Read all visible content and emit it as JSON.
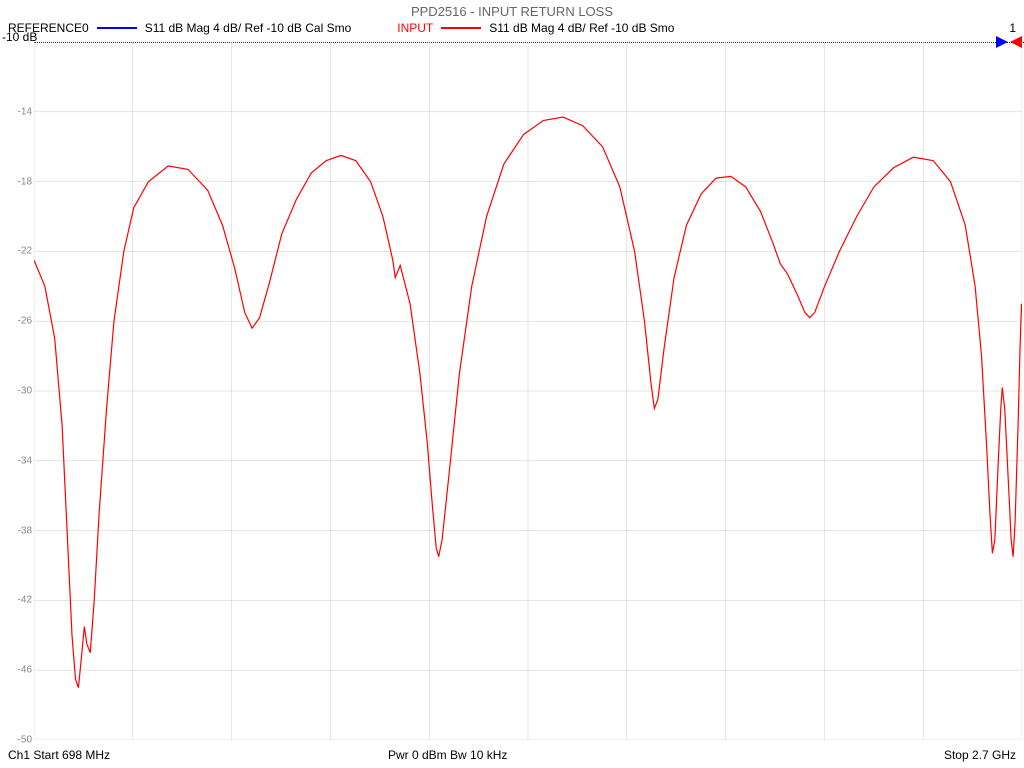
{
  "title": "PPD2516 - INPUT RETURN LOSS",
  "header": {
    "reference0_label": "REFERENCE0",
    "reference0_color": "#0000ff",
    "reference0_desc": "S11  dB Mag  4 dB/ Ref -10 dB  Cal Smo",
    "input_label": "INPUT",
    "input_color": "#ff0000",
    "input_desc": "S11  dB Mag  4 dB/ Ref -10 dB  Smo",
    "marker_num": "1"
  },
  "ref_level_text": "-10 dB",
  "y_axis": {
    "ticks": [
      -10,
      -14,
      -18,
      -22,
      -26,
      -30,
      -34,
      -38,
      -42,
      -46,
      -50
    ],
    "min": -50,
    "max": -10,
    "grid_step": 4,
    "grid_color": "#cccccc",
    "tick_color": "#888888",
    "tick_fontsize": 10
  },
  "x_axis": {
    "min_mhz": 698,
    "max_mhz": 2700,
    "divisions": 10
  },
  "chart": {
    "type": "line",
    "background_color": "#ffffff",
    "trace_color": "#ff0000",
    "trace_width": 1.2,
    "data": [
      [
        698,
        -22.5
      ],
      [
        720,
        -24
      ],
      [
        740,
        -27
      ],
      [
        755,
        -32
      ],
      [
        765,
        -38
      ],
      [
        775,
        -44
      ],
      [
        782,
        -46.5
      ],
      [
        788,
        -47
      ],
      [
        795,
        -45
      ],
      [
        800,
        -43.5
      ],
      [
        805,
        -44.5
      ],
      [
        812,
        -45
      ],
      [
        820,
        -42
      ],
      [
        830,
        -37
      ],
      [
        845,
        -31
      ],
      [
        860,
        -26
      ],
      [
        880,
        -22
      ],
      [
        900,
        -19.5
      ],
      [
        930,
        -18
      ],
      [
        970,
        -17.1
      ],
      [
        1010,
        -17.3
      ],
      [
        1050,
        -18.5
      ],
      [
        1080,
        -20.5
      ],
      [
        1105,
        -23
      ],
      [
        1125,
        -25.5
      ],
      [
        1140,
        -26.4
      ],
      [
        1155,
        -25.8
      ],
      [
        1175,
        -23.8
      ],
      [
        1200,
        -21
      ],
      [
        1230,
        -19
      ],
      [
        1260,
        -17.5
      ],
      [
        1290,
        -16.8
      ],
      [
        1320,
        -16.5
      ],
      [
        1350,
        -16.8
      ],
      [
        1380,
        -18
      ],
      [
        1405,
        -20
      ],
      [
        1425,
        -22.5
      ],
      [
        1430,
        -23.5
      ],
      [
        1440,
        -22.8
      ],
      [
        1460,
        -25
      ],
      [
        1480,
        -29
      ],
      [
        1495,
        -33
      ],
      [
        1505,
        -36.5
      ],
      [
        1513,
        -39
      ],
      [
        1518,
        -39.5
      ],
      [
        1525,
        -38.5
      ],
      [
        1540,
        -34.5
      ],
      [
        1560,
        -29
      ],
      [
        1585,
        -24
      ],
      [
        1615,
        -20
      ],
      [
        1650,
        -17
      ],
      [
        1690,
        -15.3
      ],
      [
        1730,
        -14.5
      ],
      [
        1770,
        -14.3
      ],
      [
        1810,
        -14.8
      ],
      [
        1850,
        -16
      ],
      [
        1885,
        -18.3
      ],
      [
        1915,
        -22
      ],
      [
        1935,
        -26
      ],
      [
        1948,
        -29.5
      ],
      [
        1955,
        -31
      ],
      [
        1962,
        -30.5
      ],
      [
        1975,
        -27.5
      ],
      [
        1995,
        -23.5
      ],
      [
        2020,
        -20.5
      ],
      [
        2050,
        -18.7
      ],
      [
        2080,
        -17.8
      ],
      [
        2110,
        -17.7
      ],
      [
        2140,
        -18.3
      ],
      [
        2170,
        -19.7
      ],
      [
        2195,
        -21.5
      ],
      [
        2210,
        -22.7
      ],
      [
        2225,
        -23.3
      ],
      [
        2245,
        -24.5
      ],
      [
        2260,
        -25.5
      ],
      [
        2270,
        -25.8
      ],
      [
        2280,
        -25.5
      ],
      [
        2300,
        -24
      ],
      [
        2330,
        -22
      ],
      [
        2365,
        -20
      ],
      [
        2400,
        -18.3
      ],
      [
        2440,
        -17.2
      ],
      [
        2480,
        -16.6
      ],
      [
        2520,
        -16.8
      ],
      [
        2555,
        -18
      ],
      [
        2585,
        -20.5
      ],
      [
        2605,
        -24
      ],
      [
        2618,
        -28
      ],
      [
        2628,
        -33
      ],
      [
        2635,
        -37
      ],
      [
        2640,
        -39.3
      ],
      [
        2645,
        -38.5
      ],
      [
        2652,
        -34
      ],
      [
        2657,
        -31
      ],
      [
        2660,
        -29.8
      ],
      [
        2665,
        -31
      ],
      [
        2672,
        -35
      ],
      [
        2678,
        -38.5
      ],
      [
        2682,
        -39.5
      ],
      [
        2686,
        -37.5
      ],
      [
        2692,
        -32
      ],
      [
        2696,
        -27.5
      ],
      [
        2699,
        -25
      ],
      [
        2700,
        -25.5
      ]
    ]
  },
  "markers": {
    "blue_tri_color": "#0000ff",
    "red_tri_color": "#ff0000"
  },
  "footer": {
    "left": "Ch1  Start  698 MHz",
    "mid": "Pwr  0 dBm  Bw   10 kHz",
    "right": "Stop  2.7 GHz"
  }
}
